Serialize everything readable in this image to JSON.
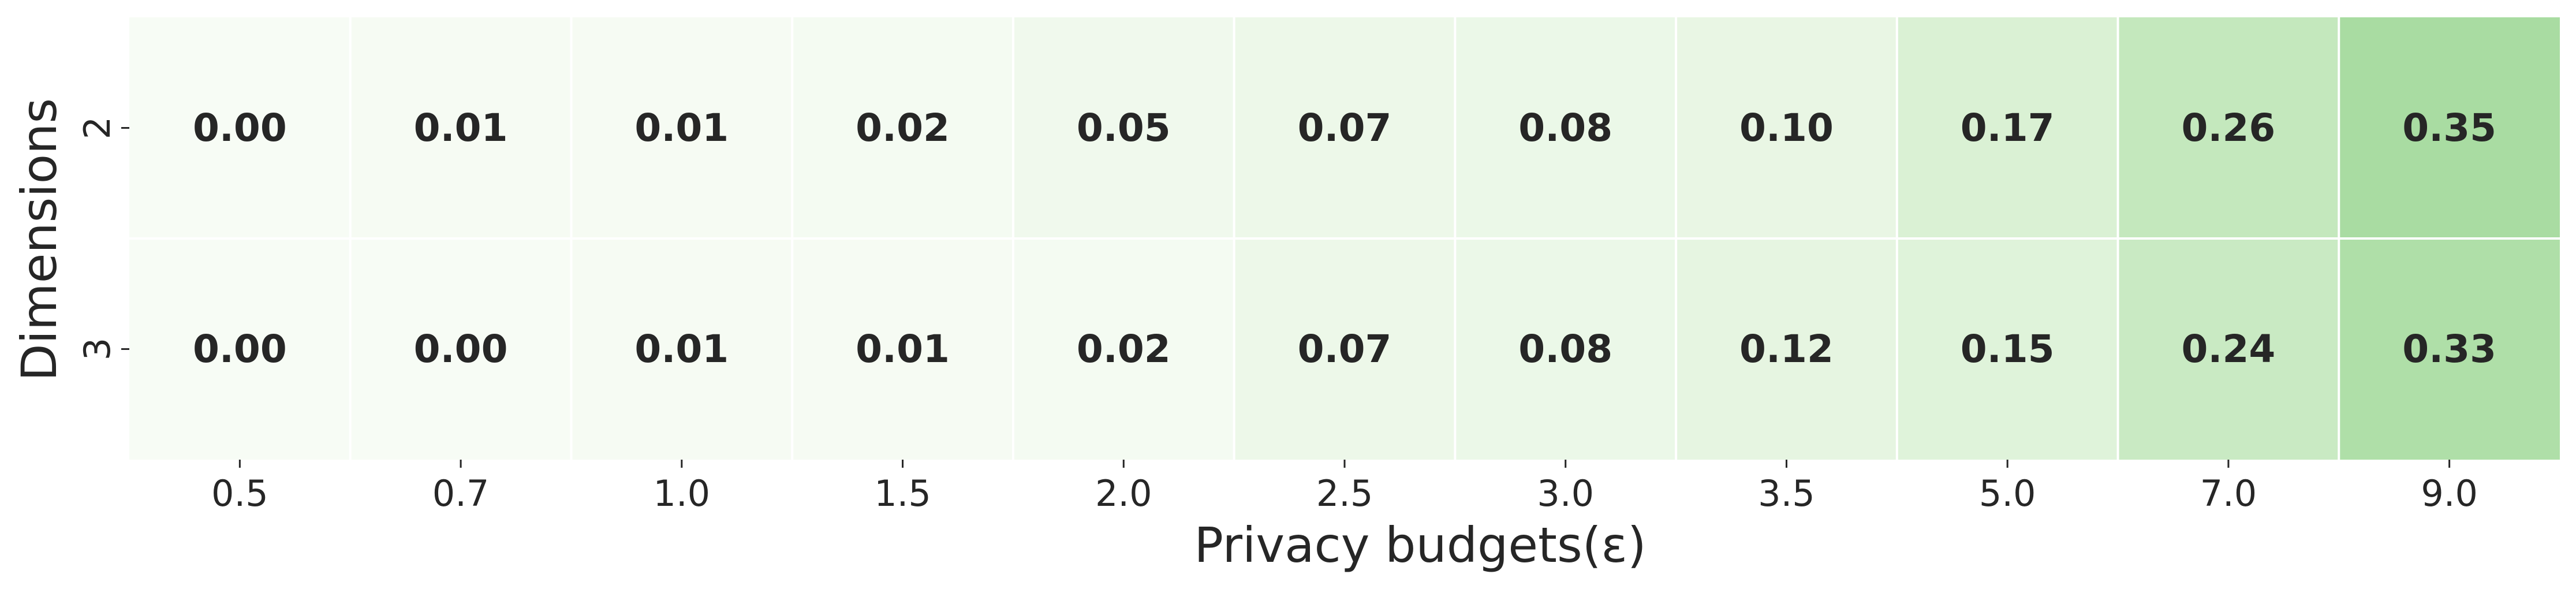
{
  "chart_data": {
    "type": "heatmap",
    "x_categories": [
      "0.5",
      "0.7",
      "1.0",
      "1.5",
      "2.0",
      "2.5",
      "3.0",
      "3.5",
      "5.0",
      "7.0",
      "9.0"
    ],
    "y_categories": [
      "2",
      "3"
    ],
    "values": [
      [
        0.0,
        0.01,
        0.01,
        0.02,
        0.05,
        0.07,
        0.08,
        0.1,
        0.17,
        0.26,
        0.35
      ],
      [
        0.0,
        0.0,
        0.01,
        0.01,
        0.02,
        0.07,
        0.08,
        0.12,
        0.15,
        0.24,
        0.33
      ]
    ],
    "value_labels": [
      [
        "0.00",
        "0.01",
        "0.01",
        "0.02",
        "0.05",
        "0.07",
        "0.08",
        "0.10",
        "0.17",
        "0.26",
        "0.35"
      ],
      [
        "0.00",
        "0.00",
        "0.01",
        "0.01",
        "0.02",
        "0.07",
        "0.08",
        "0.12",
        "0.15",
        "0.24",
        "0.33"
      ]
    ],
    "xlabel": "Privacy budgets(ε)",
    "ylabel": "Dimensions",
    "colormap": "Greens",
    "color_range": [
      0,
      1
    ],
    "color_low": "#f7fcf5",
    "color_high": "#00441b",
    "grid_line_color": "#ffffff",
    "colorbar": false
  }
}
